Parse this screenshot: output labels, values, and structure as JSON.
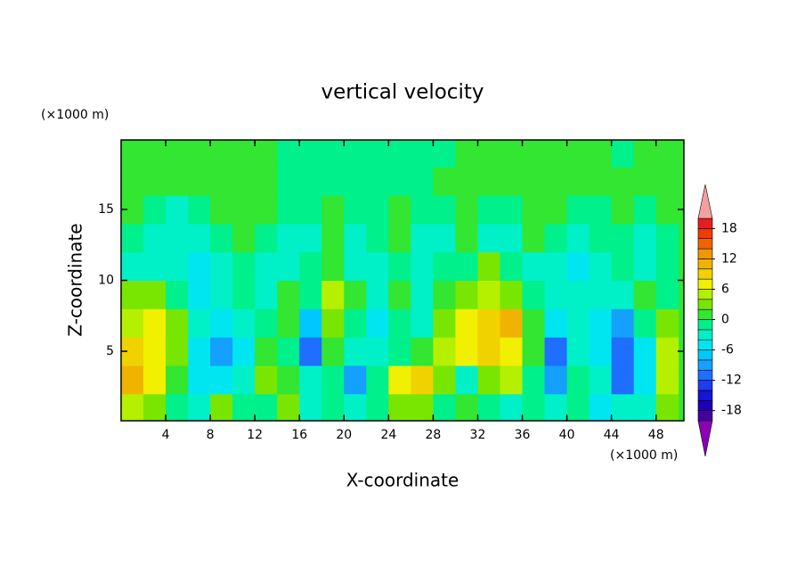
{
  "chart_data": {
    "type": "contour",
    "title": "vertical velocity",
    "x_label": "X-coordinate",
    "y_label": "Z-coordinate",
    "x_unit": "(×1000 m)",
    "y_unit": "(×1000 m)",
    "xlim": [
      0,
      50.5
    ],
    "ylim": [
      0.1,
      19.9
    ],
    "xticks": [
      4,
      8,
      12,
      16,
      20,
      24,
      28,
      32,
      36,
      40,
      44,
      48
    ],
    "yticks": [
      5,
      10,
      15
    ],
    "x": [
      1,
      3,
      5,
      7,
      9,
      11,
      13,
      15,
      17,
      19,
      21,
      23,
      25,
      27,
      29,
      31,
      33,
      35,
      37,
      39,
      41,
      43,
      45,
      47,
      49
    ],
    "y": [
      1,
      3,
      5,
      7,
      9,
      11,
      13,
      15,
      17,
      19
    ],
    "z": [
      [
        5,
        3,
        -1,
        -3,
        3,
        -1,
        -1,
        3,
        -3,
        -1,
        -3,
        -1,
        3,
        3,
        -1,
        1,
        -1,
        -3,
        -1,
        -3,
        -1,
        -5,
        -3,
        -3,
        3
      ],
      [
        11,
        7,
        1,
        -5,
        -5,
        -3,
        3,
        1,
        -3,
        -1,
        -9,
        -1,
        7,
        9,
        3,
        -3,
        3,
        5,
        -1,
        -9,
        -1,
        -3,
        -11,
        -5,
        5
      ],
      [
        9,
        7,
        3,
        -5,
        -9,
        -5,
        1,
        -1,
        -11,
        1,
        -3,
        -3,
        -1,
        1,
        5,
        7,
        9,
        7,
        1,
        -11,
        -3,
        -5,
        -11,
        -5,
        5
      ],
      [
        5,
        7,
        3,
        -3,
        -5,
        -3,
        -1,
        1,
        -7,
        3,
        -1,
        -5,
        -1,
        -3,
        3,
        7,
        9,
        11,
        1,
        -5,
        -3,
        -5,
        -9,
        -1,
        3
      ],
      [
        3,
        3,
        -1,
        -5,
        -3,
        -1,
        -3,
        1,
        -1,
        5,
        1,
        -3,
        1,
        -3,
        1,
        3,
        5,
        3,
        -1,
        -3,
        -3,
        -3,
        -3,
        1,
        -1
      ],
      [
        -3,
        -3,
        -3,
        -5,
        -3,
        -1,
        -3,
        -3,
        -1,
        1,
        -3,
        -3,
        -1,
        -3,
        -1,
        -1,
        3,
        -1,
        -3,
        -3,
        -5,
        -3,
        -1,
        -3,
        -1
      ],
      [
        -1,
        -3,
        -3,
        -3,
        -1,
        1,
        -1,
        -3,
        -3,
        1,
        -3,
        -1,
        1,
        -3,
        -3,
        1,
        -3,
        -3,
        1,
        -1,
        -3,
        -1,
        -1,
        -3,
        -1
      ],
      [
        1,
        -1,
        -3,
        -1,
        1,
        1,
        1,
        -1,
        -1,
        1,
        -1,
        -1,
        1,
        -1,
        -1,
        1,
        -1,
        -1,
        1,
        1,
        -1,
        -1,
        1,
        -1,
        1
      ],
      [
        1,
        1,
        1,
        1,
        1,
        1,
        1,
        -1,
        -1,
        -1,
        -1,
        -1,
        -1,
        -1,
        1,
        1,
        1,
        1,
        1,
        1,
        1,
        1,
        1,
        1,
        1
      ],
      [
        1,
        1,
        1,
        1,
        1,
        1,
        1,
        -1,
        -1,
        -1,
        -1,
        -1,
        -1,
        -1,
        -1,
        1,
        1,
        1,
        1,
        1,
        1,
        1,
        -1,
        1,
        1
      ]
    ],
    "levels": [
      -20,
      -18,
      -16,
      -14,
      -12,
      -10,
      -8,
      -6,
      -4,
      -2,
      0,
      2,
      4,
      6,
      8,
      10,
      12,
      14,
      16,
      18,
      20
    ],
    "colorbar_ticks": [
      -18,
      -12,
      -6,
      0,
      6,
      12,
      18
    ],
    "colors": [
      "#8c00b4",
      "#4600a0",
      "#1e00b4",
      "#1414d2",
      "#1e3cf0",
      "#1e6eff",
      "#14a0ff",
      "#00c8ff",
      "#00e6f0",
      "#00f0c8",
      "#00f08c",
      "#32e632",
      "#78e600",
      "#b4f000",
      "#f0f000",
      "#f0d200",
      "#f0b400",
      "#f09600",
      "#f06400",
      "#f03c00",
      "#e61e1e",
      "#f4a0a0"
    ]
  }
}
